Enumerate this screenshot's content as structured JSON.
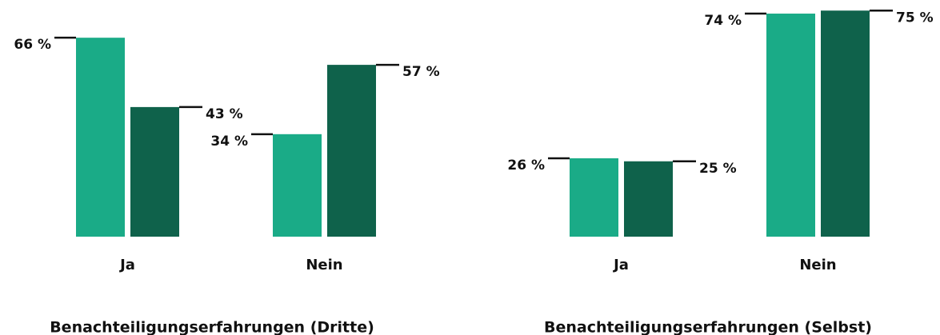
{
  "chart_data": [
    {
      "type": "bar",
      "title": "Benachteiligungserfahrungen (Dritte)",
      "categories": [
        "Ja",
        "Nein"
      ],
      "series": [
        {
          "color": "#1aab87",
          "values": [
            66,
            34
          ],
          "value_labels": [
            "66 %",
            "34 %"
          ]
        },
        {
          "color": "#0f624b",
          "values": [
            43,
            57
          ],
          "value_labels": [
            "43 %",
            "57 %"
          ]
        }
      ]
    },
    {
      "type": "bar",
      "title": "Benachteiligungserfahrungen (Selbst)",
      "categories": [
        "Ja",
        "Nein"
      ],
      "series": [
        {
          "color": "#1aab87",
          "values": [
            26,
            74
          ],
          "value_labels": [
            "26 %",
            "74 %"
          ]
        },
        {
          "color": "#0f624b",
          "values": [
            25,
            75
          ],
          "value_labels": [
            "25 %",
            "75 %"
          ]
        }
      ]
    }
  ]
}
